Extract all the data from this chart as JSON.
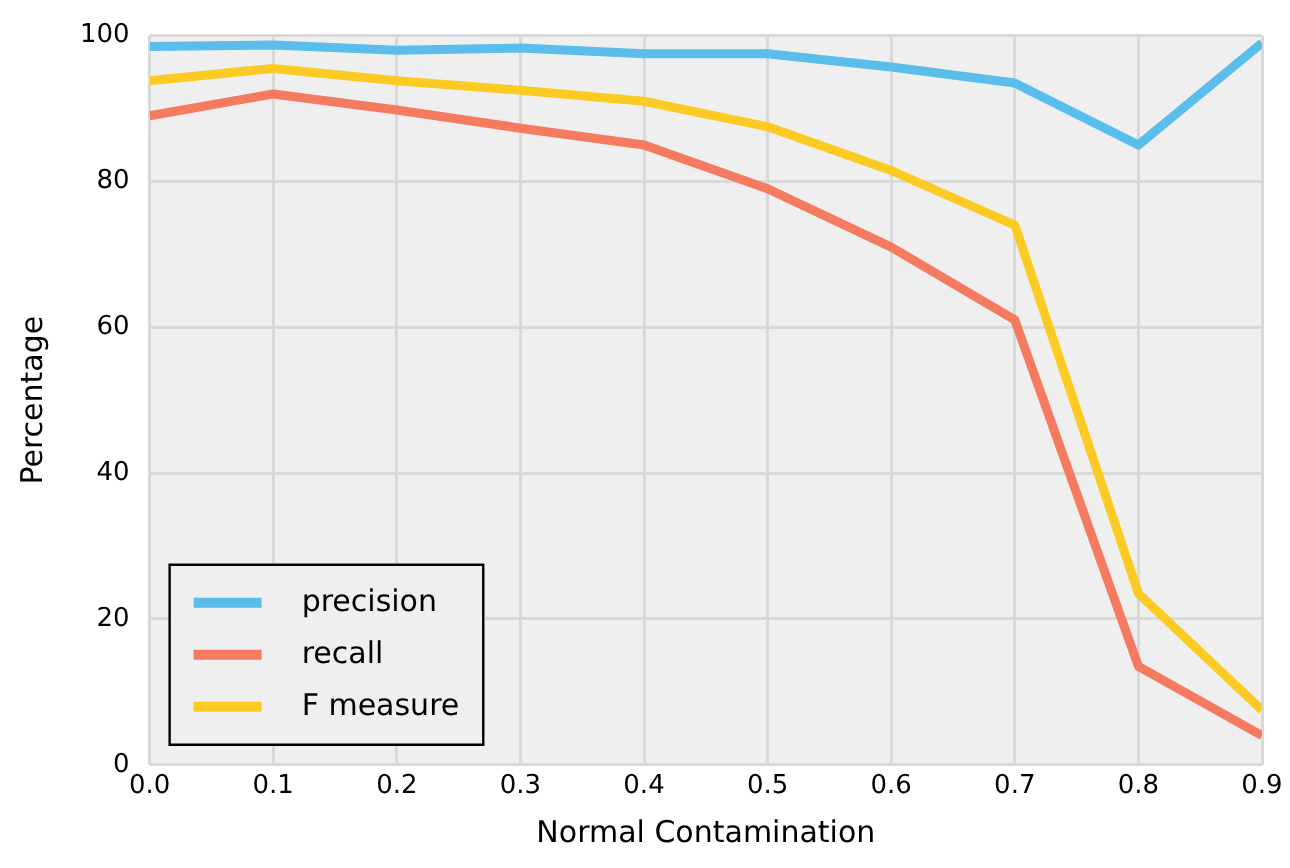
{
  "chart_data": {
    "type": "line",
    "xlabel": "Normal Contamination",
    "ylabel": "Percentage",
    "x": [
      0.0,
      0.1,
      0.2,
      0.3,
      0.4,
      0.5,
      0.6,
      0.7,
      0.8,
      0.9
    ],
    "series": [
      {
        "name": "precision",
        "color": "#5bbdea",
        "values": [
          98.5,
          98.7,
          98,
          98.3,
          97.5,
          97.5,
          95.7,
          93.5,
          85,
          99
        ]
      },
      {
        "name": "recall",
        "color": "#f47a60",
        "values": [
          89,
          92,
          89.8,
          87.3,
          85,
          79,
          71,
          61,
          13.5,
          4
        ]
      },
      {
        "name": "F measure",
        "color": "#fbcb24",
        "values": [
          93.8,
          95.5,
          93.8,
          92.5,
          91,
          87.5,
          81.5,
          74,
          23.5,
          7.5
        ]
      }
    ],
    "xlim": [
      0,
      0.9
    ],
    "ylim": [
      0,
      100
    ],
    "xticks": [
      {
        "value": 0,
        "label": "0.0"
      },
      0.1,
      0.2,
      0.3,
      0.4,
      0.5,
      0.6,
      0.7,
      0.8,
      0.9
    ],
    "yticks": [
      0,
      20,
      40,
      60,
      80,
      100
    ],
    "grid": true,
    "legend": "bottom left",
    "marker": "none",
    "line_style": "solid"
  }
}
